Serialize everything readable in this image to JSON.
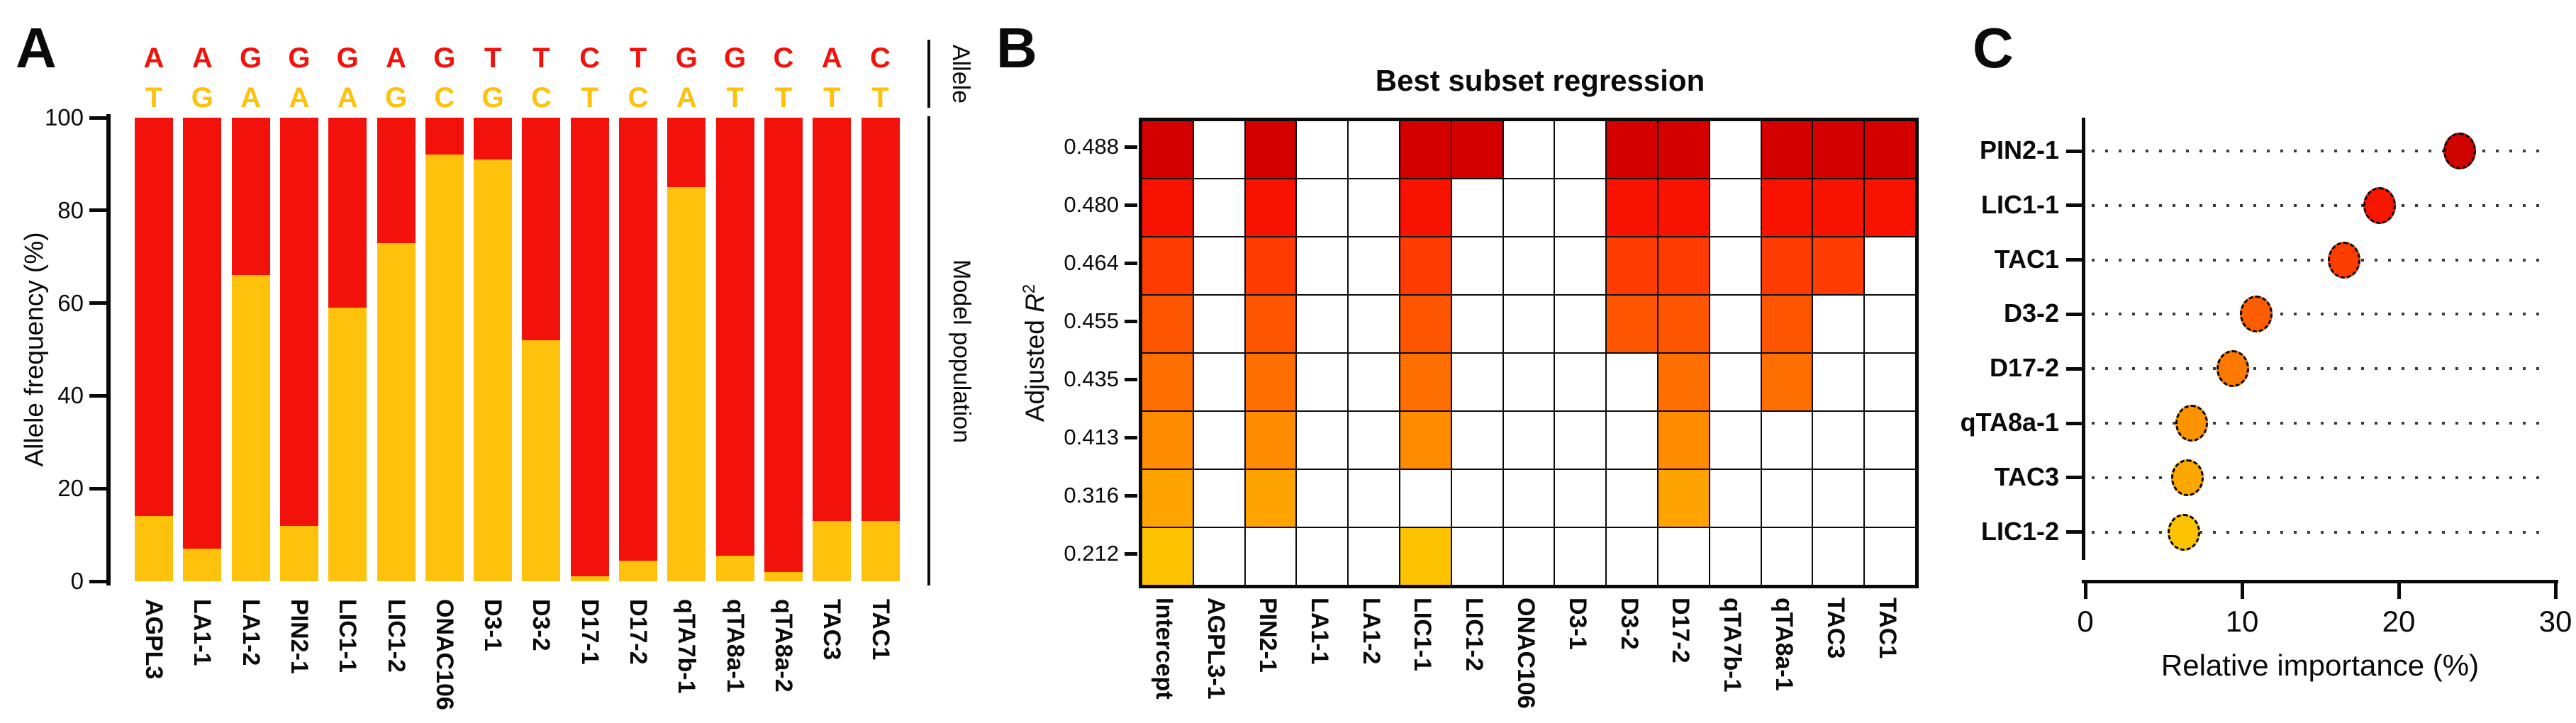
{
  "panels": {
    "a": {
      "label": "A",
      "y_axis_label": "Allele frequency (%)",
      "right_label_top": "Allele",
      "right_label_bottom": "Model population"
    },
    "b": {
      "label": "B",
      "title": "Best subset regression",
      "y_axis_label_prefix": "Adjusted",
      "y_axis_label_symbol": "R",
      "y_axis_label_sup": "2"
    },
    "c": {
      "label": "C",
      "x_axis_label": "Relative importance (%)"
    }
  },
  "chart_data": [
    {
      "panel": "A",
      "type": "bar",
      "stacked": true,
      "ylabel": "Allele frequency (%)",
      "ylim": [
        0,
        100
      ],
      "yticks": [
        0,
        20,
        40,
        60,
        80,
        100
      ],
      "categories": [
        "AGPL3",
        "LA1-1",
        "LA1-2",
        "PIN2-1",
        "LIC1-1",
        "LIC1-2",
        "ONAC106",
        "D3-1",
        "D3-2",
        "D17-1",
        "D17-2",
        "qTA7b-1",
        "qTA8a-1",
        "qTA8a-2",
        "TAC3",
        "TAC1"
      ],
      "allele_top_letters": [
        "A",
        "A",
        "G",
        "G",
        "G",
        "A",
        "G",
        "T",
        "T",
        "C",
        "T",
        "G",
        "G",
        "C",
        "A",
        "C"
      ],
      "allele_bottom_letters": [
        "T",
        "G",
        "A",
        "A",
        "A",
        "G",
        "C",
        "G",
        "C",
        "T",
        "C",
        "A",
        "T",
        "T",
        "T",
        "T"
      ],
      "series": [
        {
          "name": "Top allele frequency (red)",
          "color": "#F2120B",
          "values": [
            86,
            93,
            34,
            88,
            41,
            27,
            8,
            9,
            48,
            99,
            95.5,
            15,
            94.5,
            98,
            87,
            87
          ]
        },
        {
          "name": "Bottom allele frequency (orange)",
          "color": "#FEC20D",
          "values": [
            14,
            7,
            66,
            12,
            59,
            73,
            92,
            91,
            52,
            1,
            4.5,
            85,
            5.5,
            2,
            13,
            13
          ]
        }
      ],
      "annotations": [
        "Allele",
        "Model population"
      ]
    },
    {
      "panel": "B",
      "type": "heatmap",
      "title": "Best subset regression",
      "ylabel": "Adjusted R2",
      "columns": [
        "Intercept",
        "AGPL3-1",
        "PIN2-1",
        "LA1-1",
        "LA1-2",
        "LIC1-1",
        "LIC1-2",
        "ONAC106",
        "D3-1",
        "D3-2",
        "D17-2",
        "qTA7b-1",
        "qTA8a-1",
        "TAC3",
        "TAC1"
      ],
      "rows": [
        {
          "adjusted_r2": "0.488",
          "color": "#D40000",
          "included": [
            1,
            0,
            1,
            0,
            0,
            1,
            1,
            0,
            0,
            1,
            1,
            0,
            1,
            1,
            1
          ]
        },
        {
          "adjusted_r2": "0.480",
          "color": "#F81300",
          "included": [
            1,
            0,
            1,
            0,
            0,
            1,
            0,
            0,
            0,
            1,
            1,
            0,
            1,
            1,
            1
          ]
        },
        {
          "adjusted_r2": "0.464",
          "color": "#FE3B00",
          "included": [
            1,
            0,
            1,
            0,
            0,
            1,
            0,
            0,
            0,
            1,
            1,
            0,
            1,
            1,
            0
          ]
        },
        {
          "adjusted_r2": "0.455",
          "color": "#FE5600",
          "included": [
            1,
            0,
            1,
            0,
            0,
            1,
            0,
            0,
            0,
            1,
            1,
            0,
            1,
            0,
            0
          ]
        },
        {
          "adjusted_r2": "0.435",
          "color": "#FE6F00",
          "included": [
            1,
            0,
            1,
            0,
            0,
            1,
            0,
            0,
            0,
            0,
            1,
            0,
            1,
            0,
            0
          ]
        },
        {
          "adjusted_r2": "0.413",
          "color": "#FE8B00",
          "included": [
            1,
            0,
            1,
            0,
            0,
            1,
            0,
            0,
            0,
            0,
            1,
            0,
            0,
            0,
            0
          ]
        },
        {
          "adjusted_r2": "0.316",
          "color": "#FEA300",
          "included": [
            1,
            0,
            1,
            0,
            0,
            0,
            0,
            0,
            0,
            0,
            1,
            0,
            0,
            0,
            0
          ]
        },
        {
          "adjusted_r2": "0.212",
          "color": "#FEC300",
          "included": [
            1,
            0,
            0,
            0,
            0,
            1,
            0,
            0,
            0,
            0,
            0,
            0,
            0,
            0,
            0
          ]
        }
      ]
    },
    {
      "panel": "C",
      "type": "scatter",
      "xlabel": "Relative importance (%)",
      "xlim": [
        0,
        30
      ],
      "xticks": [
        0,
        10,
        20,
        30
      ],
      "points": [
        {
          "label": "PIN2-1",
          "x": 23.9,
          "color": "#CF0300"
        },
        {
          "label": "LIC1-1",
          "x": 18.8,
          "color": "#F71700"
        },
        {
          "label": "TAC1",
          "x": 16.5,
          "color": "#FC3D00"
        },
        {
          "label": "D3-2",
          "x": 10.9,
          "color": "#FD5D00"
        },
        {
          "label": "D17-2",
          "x": 9.4,
          "color": "#FC7900"
        },
        {
          "label": "qTA8a-1",
          "x": 6.8,
          "color": "#FC9400"
        },
        {
          "label": "TAC3",
          "x": 6.5,
          "color": "#FDA800"
        },
        {
          "label": "LIC1-2",
          "x": 6.3,
          "color": "#FDC200"
        }
      ]
    }
  ]
}
